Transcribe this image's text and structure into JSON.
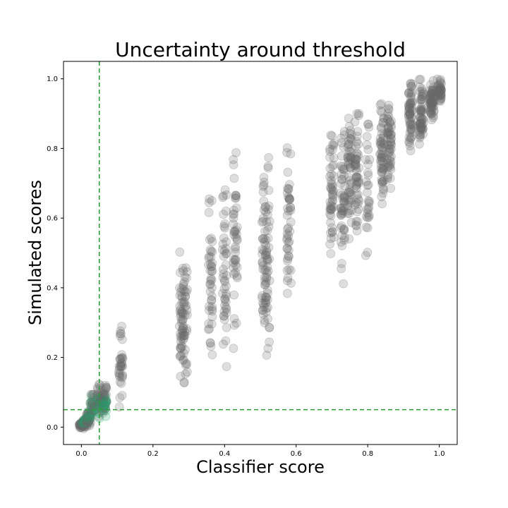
{
  "chart_data": {
    "type": "scatter",
    "title": "Uncertainty around threshold",
    "xlabel": "Classifier score",
    "ylabel": "Simulated scores",
    "xlim": [
      -0.05,
      1.05
    ],
    "ylim": [
      -0.05,
      1.05
    ],
    "xticks": [
      "0.0",
      "0.2",
      "0.4",
      "0.6",
      "0.8",
      "1.0"
    ],
    "yticks": [
      "0.0",
      "0.2",
      "0.4",
      "0.6",
      "0.8",
      "1.0"
    ],
    "grid": false,
    "threshold": 0.05,
    "threshold_color": "#2a9d3a",
    "colors": {
      "above": "#6b6b6b",
      "near": "#1aa36a"
    },
    "clusters": [
      {
        "x": 0.0,
        "ymin": -0.005,
        "ymax": 0.02,
        "n": 40
      },
      {
        "x": 0.01,
        "ymin": 0.0,
        "ymax": 0.03,
        "n": 40
      },
      {
        "x": 0.02,
        "ymin": 0.0,
        "ymax": 0.05,
        "n": 40
      },
      {
        "x": 0.03,
        "ymin": 0.02,
        "ymax": 0.1,
        "n": 30
      },
      {
        "x": 0.05,
        "ymin": 0.02,
        "ymax": 0.13,
        "n": 40
      },
      {
        "x": 0.065,
        "ymin": 0.02,
        "ymax": 0.14,
        "n": 40
      },
      {
        "x": 0.11,
        "ymin": 0.05,
        "ymax": 0.3,
        "n": 35
      },
      {
        "x": 0.28,
        "ymin": 0.08,
        "ymax": 0.55,
        "n": 45
      },
      {
        "x": 0.29,
        "ymin": 0.12,
        "ymax": 0.52,
        "n": 40
      },
      {
        "x": 0.36,
        "ymin": 0.14,
        "ymax": 0.66,
        "n": 45
      },
      {
        "x": 0.4,
        "ymin": 0.16,
        "ymax": 0.7,
        "n": 45
      },
      {
        "x": 0.43,
        "ymin": 0.22,
        "ymax": 0.8,
        "n": 45
      },
      {
        "x": 0.51,
        "ymin": 0.22,
        "ymax": 0.72,
        "n": 45
      },
      {
        "x": 0.52,
        "ymin": 0.16,
        "ymax": 0.79,
        "n": 45
      },
      {
        "x": 0.58,
        "ymin": 0.28,
        "ymax": 0.83,
        "n": 45
      },
      {
        "x": 0.7,
        "ymin": 0.48,
        "ymax": 0.85,
        "n": 50
      },
      {
        "x": 0.73,
        "ymin": 0.38,
        "ymax": 0.89,
        "n": 50
      },
      {
        "x": 0.75,
        "ymin": 0.5,
        "ymax": 0.9,
        "n": 50
      },
      {
        "x": 0.77,
        "ymin": 0.54,
        "ymax": 0.9,
        "n": 50
      },
      {
        "x": 0.8,
        "ymin": 0.46,
        "ymax": 0.9,
        "n": 30
      },
      {
        "x": 0.84,
        "ymin": 0.62,
        "ymax": 0.95,
        "n": 55
      },
      {
        "x": 0.86,
        "ymin": 0.68,
        "ymax": 0.95,
        "n": 55
      },
      {
        "x": 0.92,
        "ymin": 0.79,
        "ymax": 0.99,
        "n": 60
      },
      {
        "x": 0.95,
        "ymin": 0.8,
        "ymax": 1.0,
        "n": 60
      },
      {
        "x": 0.98,
        "ymin": 0.88,
        "ymax": 1.0,
        "n": 60
      },
      {
        "x": 1.0,
        "ymin": 0.93,
        "ymax": 1.0,
        "n": 40
      }
    ]
  }
}
